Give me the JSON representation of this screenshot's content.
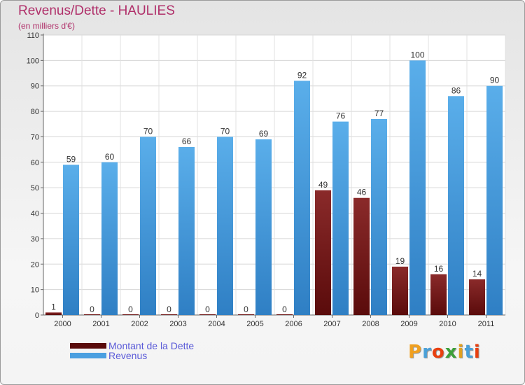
{
  "title": "Revenus/Dette - HAULIES",
  "subtitle": "(en milliers d'€)",
  "colors": {
    "dette_light": "#8a2a2a",
    "dette_dark": "#5a0b0b",
    "revenus_light": "#5aaeea",
    "revenus_dark": "#2f7fc4",
    "title": "#b0306a",
    "legend_text": "#5a5ad8"
  },
  "chart_data": {
    "type": "bar",
    "title": "Revenus/Dette - HAULIES",
    "ylabel": "(en milliers d'€)",
    "xlabel": "",
    "ylim": [
      0,
      110
    ],
    "yticks": [
      0,
      10,
      20,
      30,
      40,
      50,
      60,
      70,
      80,
      90,
      100,
      110
    ],
    "grid": true,
    "legend_position": "bottom-left",
    "categories": [
      "2000",
      "2001",
      "2002",
      "2003",
      "2004",
      "2005",
      "2006",
      "2007",
      "2008",
      "2009",
      "2010",
      "2011"
    ],
    "series": [
      {
        "name": "Montant de la Dette",
        "values": [
          1,
          0,
          0,
          0,
          0,
          0,
          0,
          49,
          46,
          19,
          16,
          14
        ]
      },
      {
        "name": "Revenus",
        "values": [
          59,
          60,
          70,
          66,
          70,
          69,
          92,
          76,
          77,
          100,
          86,
          90
        ]
      }
    ]
  },
  "legend": [
    {
      "label": "Montant de la Dette"
    },
    {
      "label": "Revenus"
    }
  ],
  "logo": {
    "text": "Proxiti"
  }
}
